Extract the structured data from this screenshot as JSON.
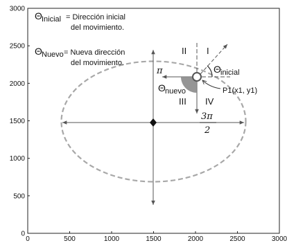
{
  "legend": {
    "entry1": {
      "symbol": "Θ",
      "sub": "Inicial",
      "line1": "= Dirección inicial",
      "line2": "del movimiento."
    },
    "entry2": {
      "symbol": "Θ",
      "sub": "Nuevo",
      "line1": "= Nueva dirección",
      "line2": "del movimiento."
    }
  },
  "axes": {
    "x_ticks": [
      "0",
      "500",
      "1000",
      "1500",
      "2000",
      "2500",
      "3000"
    ],
    "y_ticks": [
      "0",
      "500",
      "1000",
      "1500",
      "2000",
      "2500",
      "3000"
    ],
    "xlim": [
      0,
      3000
    ],
    "ylim": [
      0,
      3000
    ]
  },
  "quadrants": {
    "q1": "I",
    "q2": "II",
    "q3": "III",
    "q4": "IV"
  },
  "labels": {
    "pi": "π",
    "three_pi_num": "3π",
    "three_pi_den": "2",
    "theta_initial_symbol": "Θ",
    "theta_initial_sub": "inicial",
    "theta_new_symbol": "Θ",
    "theta_new_sub": "nuevo",
    "point": "P1(x1, y1)"
  },
  "geometry_data": {
    "center": [
      1500,
      1500
    ],
    "ellipse_radii": [
      1100,
      800
    ],
    "point": [
      2020,
      2100
    ],
    "colors": {
      "ellipse": "#a8a8a8",
      "axes": "#555555",
      "angle_fill": "#8a8a8a"
    }
  }
}
